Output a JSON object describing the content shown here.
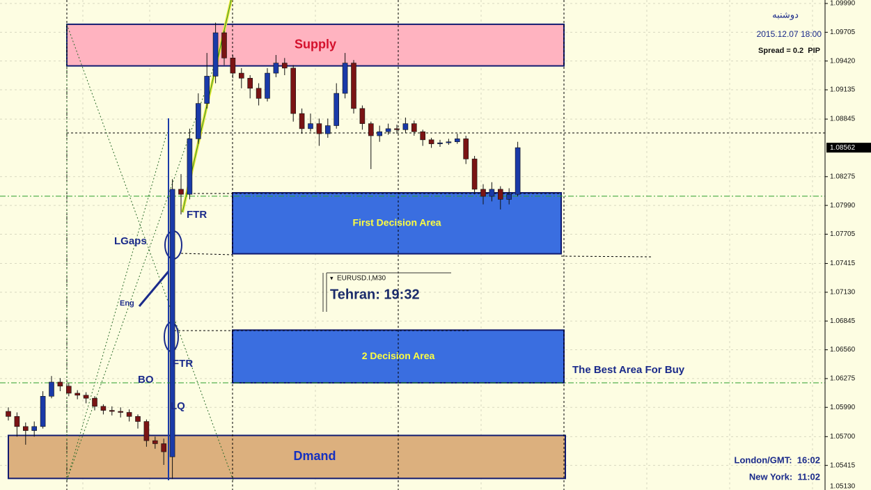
{
  "chart_data": {
    "type": "candlestick",
    "symbol": "EURUSD.I,M30",
    "open": [
      1.0595,
      1.059,
      1.058,
      1.0576,
      1.058,
      1.061,
      1.0624,
      1.062,
      1.0613,
      1.0611,
      1.0608,
      1.06,
      1.0596,
      1.0595,
      1.0594,
      1.059,
      1.0585,
      1.0566,
      1.0563,
      1.055,
      1.0815,
      1.081,
      1.0865,
      1.09,
      1.0927,
      1.097,
      1.0945,
      1.093,
      1.0925,
      1.0915,
      1.0905,
      1.093,
      1.094,
      1.0935,
      1.089,
      1.0875,
      1.088,
      1.087,
      1.0878,
      1.091,
      1.094,
      1.0895,
      1.088,
      1.0868,
      1.0872,
      1.0875,
      1.0874,
      1.088,
      1.0872,
      1.0864,
      1.086,
      1.0861,
      1.0862,
      1.0865,
      1.0845,
      1.0815,
      1.0808,
      1.0815,
      1.0805,
      1.081
    ],
    "high": [
      1.0599,
      1.0594,
      1.0584,
      1.0585,
      1.0615,
      1.063,
      1.0628,
      1.0623,
      1.0616,
      1.0614,
      1.061,
      1.0602,
      1.06,
      1.0599,
      1.0597,
      1.0592,
      1.0587,
      1.057,
      1.0568,
      1.0825,
      1.083,
      1.0875,
      1.091,
      1.095,
      1.098,
      1.0972,
      1.0948,
      1.0935,
      1.0928,
      1.092,
      1.0935,
      1.0948,
      1.0945,
      1.0938,
      1.0895,
      1.089,
      1.0885,
      1.0885,
      1.092,
      1.095,
      1.0943,
      1.0898,
      1.0882,
      1.0878,
      1.088,
      1.0879,
      1.0886,
      1.0883,
      1.0874,
      1.0866,
      1.0864,
      1.0865,
      1.087,
      1.0868,
      1.0848,
      1.082,
      1.0822,
      1.0818,
      1.0816,
      1.0862
    ],
    "low": [
      1.0586,
      1.057,
      1.0562,
      1.057,
      1.0578,
      1.0608,
      1.0615,
      1.061,
      1.0607,
      1.0603,
      1.0596,
      1.0592,
      1.0591,
      1.0589,
      1.0585,
      1.0578,
      1.056,
      1.0558,
      1.0542,
      1.0528,
      1.079,
      1.0805,
      1.086,
      1.0895,
      1.092,
      1.0938,
      1.0925,
      1.0915,
      1.0905,
      1.0898,
      1.0902,
      1.0926,
      1.0928,
      1.0882,
      1.087,
      1.0872,
      1.0858,
      1.0866,
      1.0875,
      1.0905,
      1.089,
      1.0874,
      1.0835,
      1.0862,
      1.0869,
      1.087,
      1.0871,
      1.0868,
      1.0858,
      1.0856,
      1.0857,
      1.0859,
      1.086,
      1.084,
      1.081,
      1.08,
      1.0803,
      1.0795,
      1.08,
      1.0808
    ],
    "close": [
      1.059,
      1.058,
      1.0576,
      1.058,
      1.061,
      1.0624,
      1.062,
      1.0613,
      1.0611,
      1.0608,
      1.06,
      1.0596,
      1.0595,
      1.0594,
      1.059,
      1.0585,
      1.0566,
      1.0563,
      1.0555,
      1.0815,
      1.081,
      1.0865,
      1.09,
      1.0927,
      1.097,
      1.0945,
      1.093,
      1.0925,
      1.0915,
      1.0905,
      1.093,
      1.094,
      1.0935,
      1.089,
      1.0875,
      1.088,
      1.087,
      1.0878,
      1.091,
      1.094,
      1.0895,
      1.088,
      1.0868,
      1.0872,
      1.0875,
      1.0874,
      1.088,
      1.0872,
      1.0864,
      1.086,
      1.0861,
      1.0862,
      1.0865,
      1.0845,
      1.0815,
      1.0808,
      1.0815,
      1.0805,
      1.081,
      1.08562
    ],
    "up_color": "#1a3aa8",
    "down_color": "#7a1414",
    "ylim": [
      1.0513,
      1.0999
    ],
    "yticks": [
      {
        "value": 1.0999,
        "label": "1.09990"
      },
      1.09705,
      {
        "value": 1.0942,
        "label": "1.09420"
      },
      1.09135,
      1.08845,
      1.08275,
      {
        "value": 1.0799,
        "label": "1.07990"
      },
      1.07705,
      1.07415,
      {
        "value": 1.0713,
        "label": "1.07130"
      },
      1.06845,
      {
        "value": 1.0656,
        "label": "1.06560"
      },
      1.06275,
      {
        "value": 1.0599,
        "label": "1.05990"
      },
      {
        "value": 1.057,
        "label": "1.05700"
      },
      1.05415,
      {
        "value": 1.0513,
        "label": "1.05130"
      }
    ],
    "current_price": 1.08562,
    "levels": [
      1.08081,
      1.06233
    ],
    "zones": [
      {
        "label": "Supply",
        "ylim": [
          1.09372,
          1.09784
        ],
        "color": "#ffb3c0",
        "text_color": "#d4102c"
      },
      {
        "label": "Dmand",
        "ylim": [
          1.05286,
          1.05712
        ],
        "color": "#dcb07e",
        "text_color": "#1530c0"
      },
      {
        "label": "First Decision Area",
        "ylim": [
          1.07511,
          1.08115
        ],
        "color": "#3a6ee0",
        "text_color": "#ffff40"
      },
      {
        "label": "2 Decision Area",
        "ylim": [
          1.06233,
          1.06755
        ],
        "color": "#3a6ee0",
        "text_color": "#ffff40"
      }
    ],
    "annotations": [
      "FTR",
      "FTR",
      "LGaps",
      "Eng",
      "BO",
      "LQ",
      "The Best Area For Buy"
    ]
  },
  "info": {
    "day": "دوشنبه",
    "datetime": "2015.12.07 18:00",
    "spread": "Spread = 0.2  PIP",
    "clock": "Tehran: 19:32",
    "london": "London/GMT:  16:02",
    "newyork": "New York:  11:02"
  }
}
